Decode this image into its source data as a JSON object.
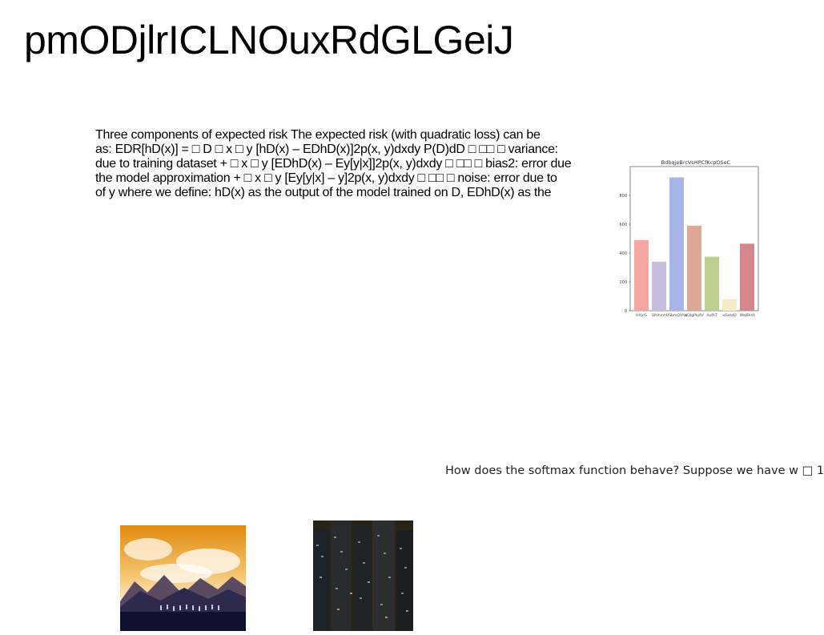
{
  "page": {
    "title": "pmODjlrICLNOuxRdGLGeiJ",
    "body_lines": [
      "Three components of expected risk The expected risk (with quadratic loss) can be",
      "as: EDR[hD(x)] = □ D □ x □ y [hD(x) – EDhD(x)]2p(x, y)dxdy P(D)dD □ □□ □ variance:",
      "due to training dataset + □ x □ y [EDhD(x) – Ey[y|x]]2p(x, y)dxdy □ □□ □ bias2: error due",
      "the model approximation + □ x □ y [Ey[y|x] – y]2p(x, y)dxdy □ □□ □ noise: error due to",
      "of y where we define: hD(x) as the output of the model trained on D, EDhD(x) as the"
    ],
    "question": "How does the softmax function behave? Suppose we have w □ 1"
  },
  "chart_data": {
    "type": "bar",
    "title": "BdbqjeBrcVsHPCfKcpOSeC",
    "categories": [
      "HXjcG",
      "SIHhmh",
      "USbmQVhp",
      "KQIgPkjAV",
      "AuPLT",
      "xGetdO",
      "iMaBhVt"
    ],
    "values": [
      490,
      340,
      925,
      590,
      375,
      80,
      465
    ],
    "colors": [
      "#f4a6a0",
      "#c9bde0",
      "#a9b5ea",
      "#dfa896",
      "#bcd08f",
      "#f4ecc6",
      "#d4878f"
    ],
    "ylim": [
      0,
      1000
    ],
    "yticks": [
      0,
      200,
      400,
      600,
      800
    ],
    "xlabel": "",
    "ylabel": ""
  },
  "images": [
    {
      "icon": "mountain-sunset-photo"
    },
    {
      "icon": "city-night-photo"
    }
  ]
}
